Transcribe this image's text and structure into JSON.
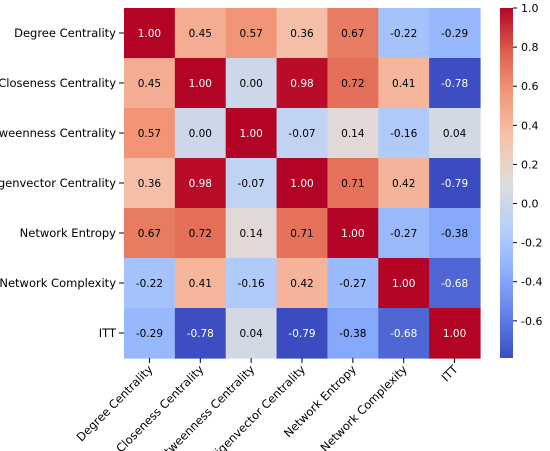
{
  "chart_data": {
    "type": "heatmap",
    "variables": [
      "Degree Centrality",
      "Closeness Centrality",
      "Betweenness Centrality",
      "Eigenvector Centrality",
      "Network Entropy",
      "Network Complexity",
      "ITT"
    ],
    "matrix": [
      [
        1.0,
        0.45,
        0.57,
        0.36,
        0.67,
        -0.22,
        -0.29
      ],
      [
        0.45,
        1.0,
        -0.0,
        0.98,
        0.72,
        0.41,
        -0.78
      ],
      [
        0.57,
        -0.0,
        1.0,
        -0.07,
        0.14,
        -0.16,
        0.04
      ],
      [
        0.36,
        0.98,
        -0.07,
        1.0,
        0.71,
        0.42,
        -0.79
      ],
      [
        0.67,
        0.72,
        0.14,
        0.71,
        1.0,
        -0.27,
        -0.38
      ],
      [
        -0.22,
        0.41,
        -0.16,
        0.42,
        -0.27,
        1.0,
        -0.68
      ],
      [
        -0.29,
        -0.78,
        0.04,
        -0.79,
        -0.38,
        -0.68,
        1.0
      ]
    ],
    "value_format": "2dp",
    "colormap": "coolwarm",
    "vmin": -0.79,
    "vmax": 1.0,
    "colorbar_ticks": [
      1.0,
      0.8,
      0.6,
      0.4,
      0.2,
      0.0,
      -0.2,
      -0.4,
      -0.6
    ],
    "xlabel": "",
    "ylabel": "",
    "title": ""
  }
}
